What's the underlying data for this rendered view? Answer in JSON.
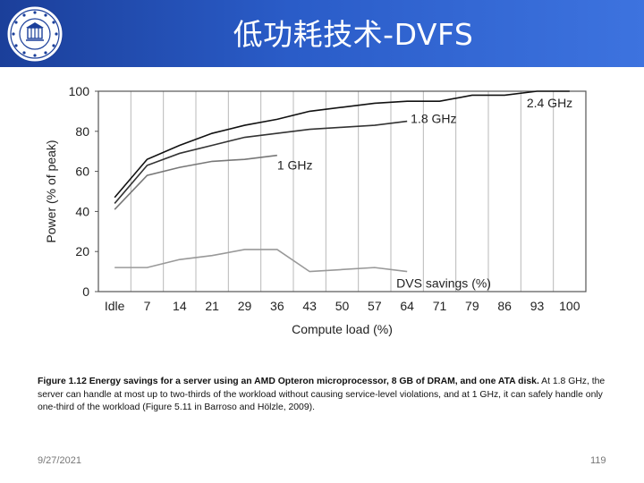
{
  "slide": {
    "title": "低功耗技术-DVFS",
    "date": "9/27/2021",
    "page_number": "119",
    "header_color": "#2a5cc8"
  },
  "caption": {
    "bold": "Figure 1.12 Energy savings for a server using an AMD Opteron microprocessor, 8 GB of DRAM, and one ATA disk.",
    "text": " At 1.8 GHz, the server can handle at most up to two-thirds of the workload without causing service-level violations, and at 1 GHz, it can safely handle only one-third of the workload (Figure 5.11 in Barroso and Hölzle, 2009)."
  },
  "chart_data": {
    "type": "line",
    "xlabel": "Compute load (%)",
    "ylabel": "Power (% of peak)",
    "categories": [
      "Idle",
      "7",
      "14",
      "21",
      "29",
      "36",
      "43",
      "50",
      "57",
      "64",
      "71",
      "79",
      "86",
      "93",
      "100"
    ],
    "yticks": [
      0,
      20,
      40,
      60,
      80,
      100
    ],
    "ylim": [
      0,
      100
    ],
    "grid": "vertical",
    "series": [
      {
        "name": "2.4 GHz",
        "color": "#111111",
        "values": [
          47,
          66,
          73,
          79,
          83,
          86,
          90,
          92,
          94,
          95,
          95,
          98,
          98,
          100,
          100
        ]
      },
      {
        "name": "1.8 GHz",
        "color": "#333333",
        "values": [
          44,
          63,
          69,
          73,
          77,
          79,
          81,
          82,
          83,
          85,
          null,
          null,
          null,
          null,
          null
        ]
      },
      {
        "name": "1 GHz",
        "color": "#777777",
        "values": [
          41,
          58,
          62,
          65,
          66,
          68,
          null,
          null,
          null,
          null,
          null,
          null,
          null,
          null,
          null
        ]
      },
      {
        "name": "DVS savings (%)",
        "color": "#999999",
        "values": [
          12,
          12,
          16,
          18,
          21,
          21,
          10,
          11,
          12,
          10,
          null,
          null,
          null,
          null,
          null
        ]
      }
    ]
  }
}
